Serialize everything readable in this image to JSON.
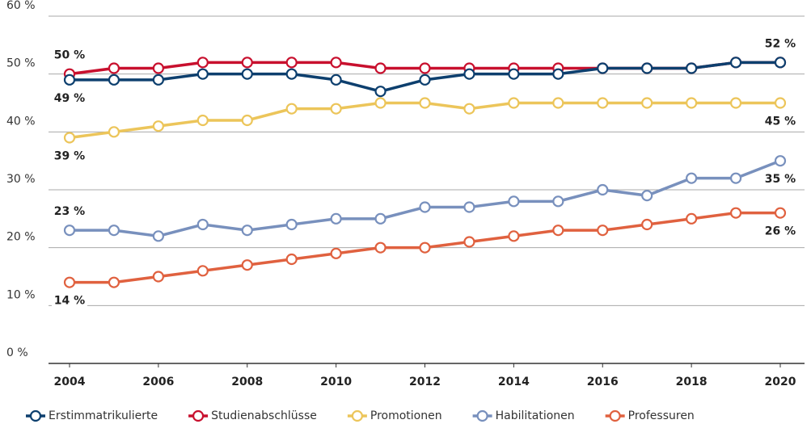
{
  "chart_data": {
    "type": "line",
    "x": [
      2004,
      2005,
      2006,
      2007,
      2008,
      2009,
      2010,
      2011,
      2012,
      2013,
      2014,
      2015,
      2016,
      2017,
      2018,
      2019,
      2020
    ],
    "xlim": [
      2004,
      2020
    ],
    "xticks": [
      2004,
      2006,
      2008,
      2010,
      2012,
      2014,
      2016,
      2018,
      2020
    ],
    "ylim": [
      0,
      60
    ],
    "yticks": [
      {
        "value": 0,
        "label": "0 %"
      },
      {
        "value": 10,
        "label": "10 %"
      },
      {
        "value": 20,
        "label": "20 %"
      },
      {
        "value": 30,
        "label": "30 %"
      },
      {
        "value": 40,
        "label": "40 %"
      },
      {
        "value": 50,
        "label": "50 %"
      },
      {
        "value": 60,
        "label": "60 %"
      }
    ],
    "grid": true,
    "legend": "bottom",
    "series": [
      {
        "name": "Erstimmatrikulierte",
        "color": "#0d3f6e",
        "values": [
          49,
          49,
          49,
          50,
          50,
          50,
          49,
          47,
          49,
          50,
          50,
          50,
          51,
          51,
          51,
          52,
          52
        ],
        "value_labels": [
          "49 %",
          null,
          null,
          null,
          null,
          null,
          null,
          null,
          null,
          null,
          null,
          null,
          null,
          null,
          null,
          null,
          "52 %"
        ]
      },
      {
        "name": "Studienabschlüsse",
        "color": "#c8102e",
        "values": [
          50,
          51,
          51,
          52,
          52,
          52,
          52,
          51,
          51,
          51,
          51,
          51,
          51,
          51,
          51,
          52,
          52
        ],
        "value_labels": [
          "50 %",
          null,
          null,
          null,
          null,
          null,
          null,
          null,
          null,
          null,
          null,
          null,
          null,
          null,
          null,
          null,
          null
        ]
      },
      {
        "name": "Promotionen",
        "color": "#ecc55a",
        "values": [
          39,
          40,
          41,
          42,
          42,
          44,
          44,
          45,
          45,
          44,
          45,
          45,
          45,
          45,
          45,
          45,
          45
        ],
        "value_labels": [
          "39 %",
          null,
          null,
          null,
          null,
          null,
          null,
          null,
          null,
          null,
          null,
          null,
          null,
          null,
          null,
          null,
          "45 %"
        ]
      },
      {
        "name": "Habilitationen",
        "color": "#7890bd",
        "values": [
          23,
          23,
          22,
          24,
          23,
          24,
          25,
          25,
          27,
          27,
          28,
          28,
          30,
          29,
          32,
          32,
          35
        ],
        "value_labels": [
          "23 %",
          null,
          null,
          null,
          null,
          null,
          null,
          null,
          null,
          null,
          null,
          null,
          null,
          null,
          null,
          null,
          "35 %"
        ]
      },
      {
        "name": "Professuren",
        "color": "#e0613f",
        "values": [
          14,
          14,
          15,
          16,
          17,
          18,
          19,
          20,
          20,
          21,
          22,
          23,
          23,
          24,
          25,
          26,
          26
        ],
        "value_labels": [
          "14 %",
          null,
          null,
          null,
          null,
          null,
          null,
          null,
          null,
          null,
          null,
          null,
          null,
          null,
          null,
          null,
          "26 %"
        ]
      }
    ]
  }
}
